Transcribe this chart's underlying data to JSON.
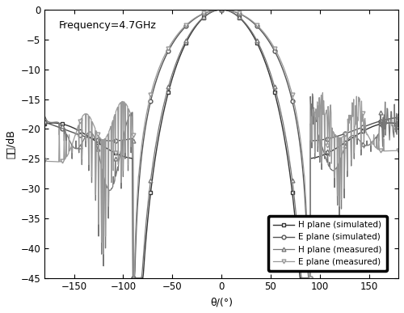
{
  "title_annotation": "Frequency=4.7GHz",
  "xlabel": "θ/(°)",
  "ylabel": "幅度/dB",
  "xlim": [
    -180,
    180
  ],
  "ylim": [
    -45,
    0
  ],
  "xticks": [
    -150,
    -100,
    -50,
    0,
    50,
    100,
    150
  ],
  "yticks": [
    0,
    -5,
    -10,
    -15,
    -20,
    -25,
    -30,
    -35,
    -40,
    -45
  ],
  "background_color": "#ffffff",
  "figsize": [
    5.0,
    3.87
  ],
  "dpi": 100
}
